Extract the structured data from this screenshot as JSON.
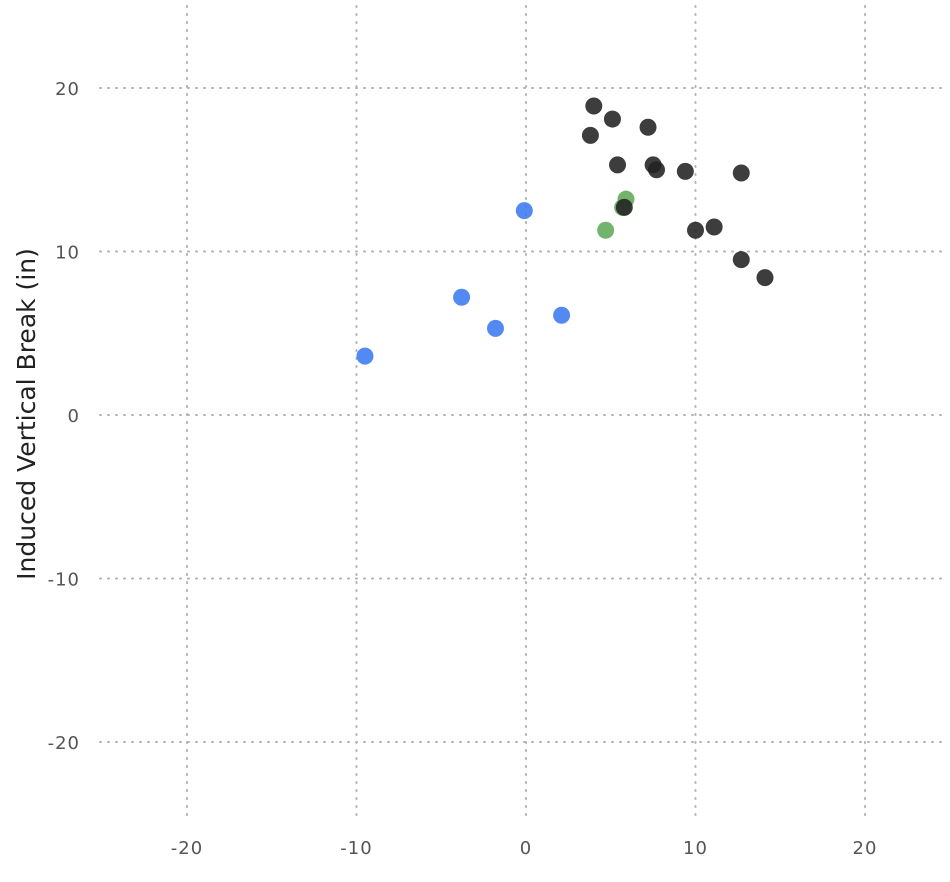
{
  "chart_data": {
    "type": "scatter",
    "title": "",
    "xlabel": "",
    "ylabel": "Induced Vertical Break (in)",
    "xlim": [
      -25,
      25
    ],
    "ylim": [
      -25,
      25
    ],
    "x_ticks": [
      -20,
      -10,
      0,
      10,
      20
    ],
    "y_ticks": [
      20,
      10,
      0,
      -10,
      -20
    ],
    "x_tick_labels": [
      "-20",
      "-10",
      "0",
      "10",
      "20"
    ],
    "y_tick_labels": [
      "20",
      "10",
      "0",
      "-10",
      "-20"
    ],
    "grid": true,
    "series": [
      {
        "color": "#3b7af0",
        "x": [
          -9.5,
          -3.8,
          -1.8,
          -0.1,
          2.1
        ],
        "y": [
          3.6,
          7.2,
          5.3,
          12.5,
          6.1
        ]
      },
      {
        "color": "#5fa85a",
        "x": [
          4.7,
          5.7,
          5.9
        ],
        "y": [
          11.3,
          12.7,
          13.2
        ]
      },
      {
        "color": "#222222",
        "x": [
          4.0,
          3.8,
          5.1,
          5.4,
          7.2,
          7.5,
          7.7,
          9.4,
          12.7,
          5.8,
          10.0,
          11.1,
          12.7,
          14.1
        ],
        "y": [
          18.9,
          17.1,
          18.1,
          15.3,
          17.6,
          15.3,
          15.0,
          14.9,
          14.8,
          12.7,
          11.3,
          11.5,
          9.5,
          8.4
        ]
      }
    ]
  }
}
